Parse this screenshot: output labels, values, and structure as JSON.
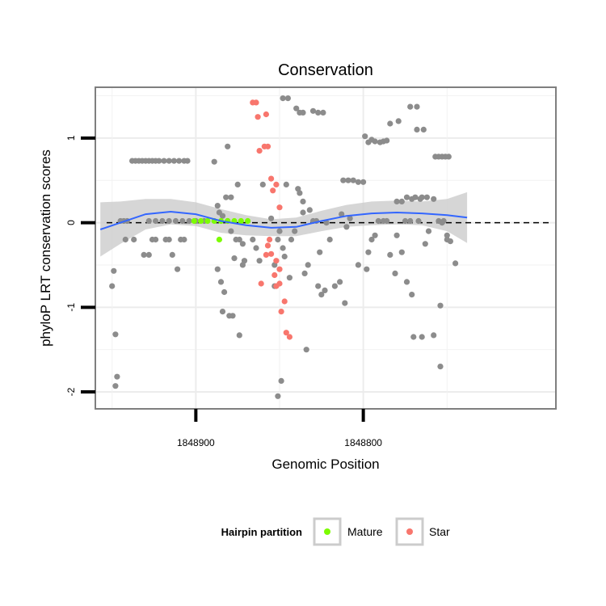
{
  "chart_data": {
    "type": "scatter",
    "title": "Conservation",
    "xlabel": "Genomic Position",
    "ylabel": "phyloP LRT conservation scores",
    "x_reversed": true,
    "xlim": [
      1848960,
      1848685
    ],
    "ylim": [
      -2.2,
      1.6
    ],
    "x_ticks": [
      1848900,
      1848800
    ],
    "x_tick_labels": [
      "1848900",
      "1848800"
    ],
    "y_ticks": [
      1,
      0,
      -1,
      -2
    ],
    "y_tick_labels": [
      "1",
      "0",
      "-1",
      "-2"
    ],
    "grid": true,
    "reference_line": {
      "y": 0,
      "style": "dashed"
    },
    "legend": {
      "title": "Hairpin partition",
      "position": "bottom",
      "entries": [
        {
          "label": "Mature",
          "color": "#7CFC00"
        },
        {
          "label": "Star",
          "color": "#F8766D"
        }
      ]
    },
    "colors": {
      "background_points": "#8c8c8c",
      "Mature": "#7CFC00",
      "Star": "#F8766D",
      "smooth": "#3366FF",
      "ribbon": "#cccccc"
    },
    "series": [
      {
        "name": "",
        "color": "#8c8c8c",
        "points": [
          [
            1848950,
            -0.75
          ],
          [
            1848949,
            -0.57
          ],
          [
            1848948,
            -1.32
          ],
          [
            1848947,
            -1.82
          ],
          [
            1848948,
            -1.93
          ],
          [
            1848945,
            0.02
          ],
          [
            1848943,
            0.02
          ],
          [
            1848941,
            0.02
          ],
          [
            1848942,
            -0.2
          ],
          [
            1848937,
            -0.2
          ],
          [
            1848938,
            0.73
          ],
          [
            1848936,
            0.73
          ],
          [
            1848934,
            0.73
          ],
          [
            1848932,
            0.73
          ],
          [
            1848930,
            0.73
          ],
          [
            1848928,
            0.73
          ],
          [
            1848926,
            0.73
          ],
          [
            1848924,
            0.73
          ],
          [
            1848922,
            0.73
          ],
          [
            1848919,
            0.73
          ],
          [
            1848916,
            0.73
          ],
          [
            1848913,
            0.73
          ],
          [
            1848910,
            0.73
          ],
          [
            1848907,
            0.73
          ],
          [
            1848905,
            0.73
          ],
          [
            1848931,
            -0.38
          ],
          [
            1848928,
            -0.38
          ],
          [
            1848926,
            -0.2
          ],
          [
            1848924,
            -0.2
          ],
          [
            1848918,
            -0.2
          ],
          [
            1848916,
            -0.2
          ],
          [
            1848914,
            -0.38
          ],
          [
            1848911,
            -0.55
          ],
          [
            1848909,
            -0.2
          ],
          [
            1848907,
            -0.2
          ],
          [
            1848928,
            0.02
          ],
          [
            1848924,
            0.02
          ],
          [
            1848920,
            0.02
          ],
          [
            1848916,
            0.02
          ],
          [
            1848912,
            0.02
          ],
          [
            1848908,
            0.02
          ],
          [
            1848904,
            0.02
          ],
          [
            1848900,
            0.02
          ],
          [
            1848895,
            0.02
          ],
          [
            1848889,
            0.72
          ],
          [
            1848887,
            0.2
          ],
          [
            1848886,
            0.12
          ],
          [
            1848884,
            0.08
          ],
          [
            1848882,
            0.3
          ],
          [
            1848887,
            -0.55
          ],
          [
            1848885,
            -0.7
          ],
          [
            1848883,
            -0.82
          ],
          [
            1848884,
            -1.05
          ],
          [
            1848880,
            -1.1
          ],
          [
            1848878,
            -1.1
          ],
          [
            1848877,
            -0.42
          ],
          [
            1848876,
            -0.2
          ],
          [
            1848874,
            -0.2
          ],
          [
            1848875,
            0.45
          ],
          [
            1848879,
            0.3
          ],
          [
            1848881,
            0.9
          ],
          [
            1848881,
            0.02
          ],
          [
            1848879,
            -0.1
          ],
          [
            1848872,
            -0.25
          ],
          [
            1848872,
            -0.5
          ],
          [
            1848871,
            -0.45
          ],
          [
            1848866,
            -0.2
          ],
          [
            1848864,
            -0.3
          ],
          [
            1848862,
            -0.45
          ],
          [
            1848874,
            -1.33
          ],
          [
            1848860,
            0.45
          ],
          [
            1848855,
            0.05
          ],
          [
            1848853,
            -0.75
          ],
          [
            1848853,
            -0.5
          ],
          [
            1848851,
            -0.2
          ],
          [
            1848850,
            -0.1
          ],
          [
            1848849,
            -1.87
          ],
          [
            1848851,
            -2.05
          ],
          [
            1848847,
            -0.4
          ],
          [
            1848848,
            -0.3
          ],
          [
            1848846,
            0.45
          ],
          [
            1848844,
            -0.65
          ],
          [
            1848843,
            -0.2
          ],
          [
            1848841,
            -0.1
          ],
          [
            1848839,
            0.4
          ],
          [
            1848838,
            0.35
          ],
          [
            1848836,
            0.25
          ],
          [
            1848836,
            0.12
          ],
          [
            1848835,
            -0.6
          ],
          [
            1848833,
            -0.5
          ],
          [
            1848834,
            -1.5
          ],
          [
            1848832,
            0.15
          ],
          [
            1848830,
            0.02
          ],
          [
            1848828,
            0.02
          ],
          [
            1848826,
            -0.35
          ],
          [
            1848827,
            -0.75
          ],
          [
            1848825,
            -0.85
          ],
          [
            1848823,
            -0.8
          ],
          [
            1848822,
            0.0
          ],
          [
            1848820,
            -0.2
          ],
          [
            1848817,
            -0.75
          ],
          [
            1848814,
            -0.7
          ],
          [
            1848813,
            0.1
          ],
          [
            1848811,
            -0.95
          ],
          [
            1848810,
            -0.05
          ],
          [
            1848808,
            0.05
          ],
          [
            1848803,
            -0.5
          ],
          [
            1848798,
            -0.55
          ],
          [
            1848797,
            -0.35
          ],
          [
            1848795,
            -0.2
          ],
          [
            1848793,
            -0.15
          ],
          [
            1848791,
            0.02
          ],
          [
            1848788,
            0.02
          ],
          [
            1848786,
            0.02
          ],
          [
            1848784,
            -0.38
          ],
          [
            1848781,
            -0.6
          ],
          [
            1848780,
            -0.15
          ],
          [
            1848777,
            -0.35
          ],
          [
            1848774,
            -0.7
          ],
          [
            1848771,
            -0.85
          ],
          [
            1848770,
            -1.35
          ],
          [
            1848765,
            -1.35
          ],
          [
            1848763,
            -0.25
          ],
          [
            1848761,
            -0.1
          ],
          [
            1848765,
            0.3
          ],
          [
            1848762,
            0.3
          ],
          [
            1848758,
            0.28
          ],
          [
            1848755,
            0.02
          ],
          [
            1848752,
            0.02
          ],
          [
            1848750,
            -0.15
          ],
          [
            1848748,
            -0.22
          ],
          [
            1848754,
            -1.7
          ],
          [
            1848754,
            -0.98
          ],
          [
            1848745,
            -0.48
          ],
          [
            1848750,
            -0.2
          ],
          [
            1848758,
            -1.33
          ],
          [
            1848753,
            0.0
          ],
          [
            1848767,
            0.02
          ],
          [
            1848772,
            0.02
          ],
          [
            1848775,
            0.02
          ],
          [
            1848848,
            1.47
          ],
          [
            1848845,
            1.47
          ],
          [
            1848840,
            1.35
          ],
          [
            1848838,
            1.3
          ],
          [
            1848836,
            1.3
          ],
          [
            1848830,
            1.32
          ],
          [
            1848827,
            1.3
          ],
          [
            1848824,
            1.3
          ],
          [
            1848799,
            1.02
          ],
          [
            1848797,
            0.95
          ],
          [
            1848795,
            0.98
          ],
          [
            1848793,
            0.96
          ],
          [
            1848790,
            0.95
          ],
          [
            1848788,
            0.96
          ],
          [
            1848786,
            0.97
          ],
          [
            1848784,
            1.17
          ],
          [
            1848779,
            1.2
          ],
          [
            1848772,
            1.37
          ],
          [
            1848768,
            1.37
          ],
          [
            1848768,
            1.1
          ],
          [
            1848764,
            1.1
          ],
          [
            1848757,
            0.78
          ],
          [
            1848755,
            0.78
          ],
          [
            1848753,
            0.78
          ],
          [
            1848751,
            0.78
          ],
          [
            1848749,
            0.78
          ],
          [
            1848812,
            0.5
          ],
          [
            1848809,
            0.5
          ],
          [
            1848806,
            0.5
          ],
          [
            1848803,
            0.48
          ],
          [
            1848800,
            0.48
          ],
          [
            1848780,
            0.25
          ],
          [
            1848777,
            0.25
          ],
          [
            1848774,
            0.3
          ],
          [
            1848771,
            0.28
          ],
          [
            1848769,
            0.3
          ],
          [
            1848766,
            0.28
          ]
        ]
      },
      {
        "name": "Mature",
        "color": "#7CFC00",
        "points": [
          [
            1848901,
            0.02
          ],
          [
            1848897,
            0.02
          ],
          [
            1848893,
            0.02
          ],
          [
            1848889,
            0.02
          ],
          [
            1848885,
            0.02
          ],
          [
            1848881,
            0.02
          ],
          [
            1848877,
            0.02
          ],
          [
            1848873,
            0.02
          ],
          [
            1848869,
            0.02
          ],
          [
            1848886,
            -0.2
          ]
        ]
      },
      {
        "name": "Star",
        "color": "#F8766D",
        "points": [
          [
            1848866,
            1.42
          ],
          [
            1848864,
            1.42
          ],
          [
            1848863,
            1.25
          ],
          [
            1848858,
            1.28
          ],
          [
            1848862,
            0.85
          ],
          [
            1848859,
            0.9
          ],
          [
            1848857,
            0.9
          ],
          [
            1848855,
            0.52
          ],
          [
            1848852,
            0.45
          ],
          [
            1848850,
            0.18
          ],
          [
            1848854,
            0.38
          ],
          [
            1848857,
            -0.27
          ],
          [
            1848855,
            -0.37
          ],
          [
            1848852,
            -0.45
          ],
          [
            1848850,
            -0.55
          ],
          [
            1848852,
            -0.75
          ],
          [
            1848850,
            -0.72
          ],
          [
            1848847,
            -0.93
          ],
          [
            1848849,
            -1.05
          ],
          [
            1848846,
            -1.3
          ],
          [
            1848844,
            -1.35
          ],
          [
            1848861,
            -0.72
          ],
          [
            1848858,
            -0.38
          ],
          [
            1848856,
            -0.2
          ],
          [
            1848853,
            -0.62
          ]
        ]
      }
    ],
    "smooth_line": {
      "x": [
        1848957,
        1848945,
        1848930,
        1848915,
        1848900,
        1848885,
        1848870,
        1848855,
        1848840,
        1848825,
        1848810,
        1848795,
        1848780,
        1848765,
        1848750,
        1848738
      ],
      "y": [
        -0.08,
        0.0,
        0.1,
        0.13,
        0.1,
        0.02,
        -0.03,
        -0.06,
        -0.05,
        0.02,
        0.08,
        0.11,
        0.12,
        0.11,
        0.09,
        0.06
      ],
      "lower": [
        -0.4,
        -0.25,
        -0.08,
        -0.02,
        -0.04,
        -0.12,
        -0.15,
        -0.16,
        -0.16,
        -0.1,
        -0.05,
        -0.03,
        -0.02,
        -0.03,
        -0.1,
        -0.24
      ],
      "upper": [
        0.24,
        0.25,
        0.28,
        0.28,
        0.24,
        0.16,
        0.09,
        0.04,
        0.06,
        0.14,
        0.21,
        0.25,
        0.26,
        0.25,
        0.28,
        0.36
      ]
    }
  }
}
